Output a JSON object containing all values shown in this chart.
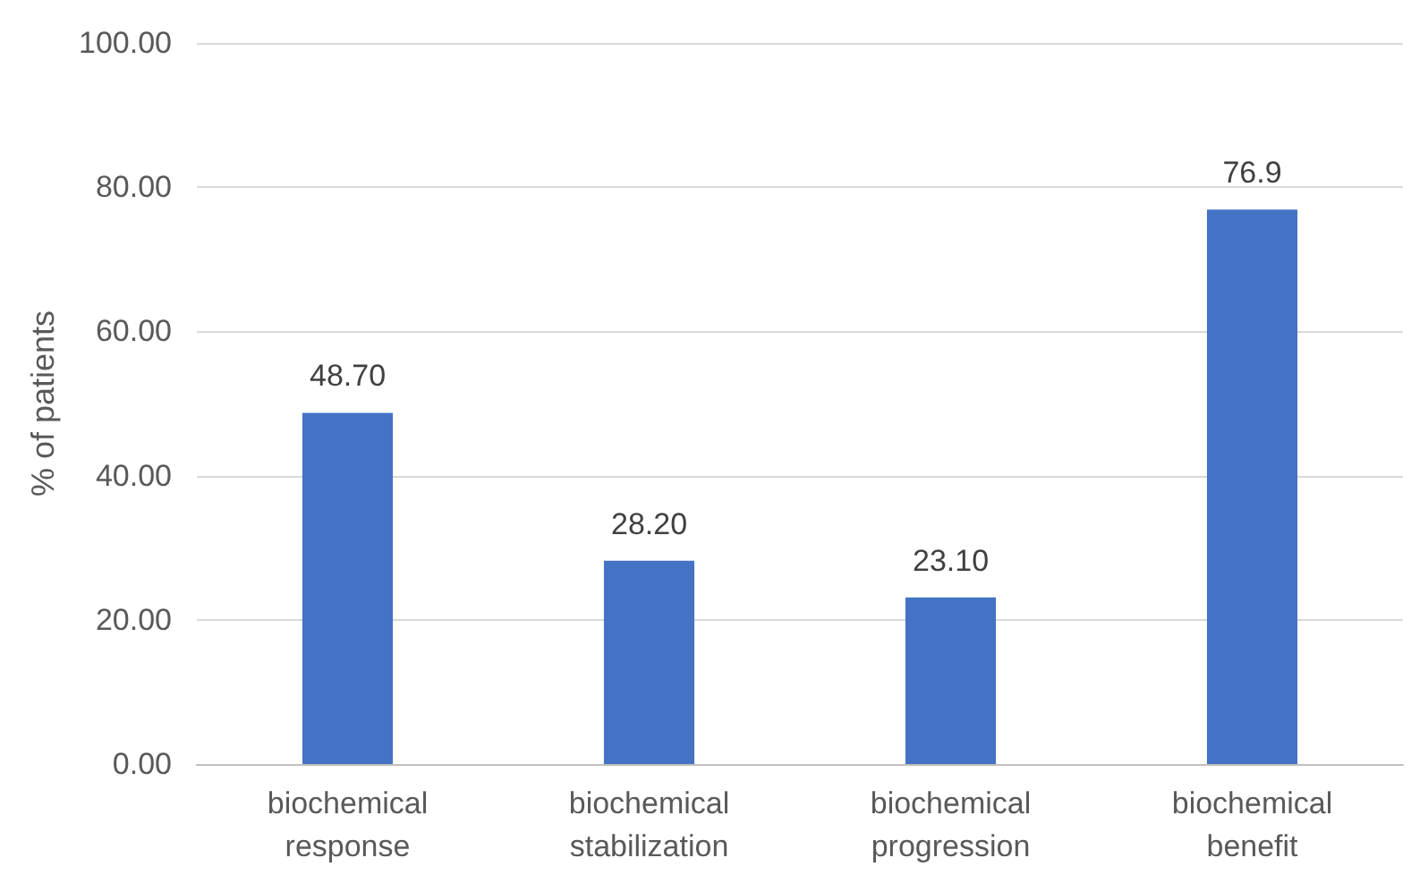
{
  "chart_data": {
    "type": "bar",
    "ylabel": "% of patients",
    "categories": [
      "biochemical\nresponse",
      "biochemical\nstabilization",
      "biochemical\nprogression",
      "biochemical\nbenefit"
    ],
    "values": [
      48.7,
      28.2,
      23.1,
      76.9
    ],
    "color": "#4472c4",
    "value_labels": [
      "48.70",
      "28.20",
      "23.10",
      "76.9"
    ],
    "ylim": [
      0,
      100
    ],
    "yticks": [
      {
        "value": 0,
        "label": "0.00"
      },
      {
        "value": 20,
        "label": "20.00"
      },
      {
        "value": 40,
        "label": "40.00"
      },
      {
        "value": 60,
        "label": "60.00"
      },
      {
        "value": 80,
        "label": "80.00"
      },
      {
        "value": 100,
        "label": "100.00"
      }
    ],
    "grid": "y"
  }
}
